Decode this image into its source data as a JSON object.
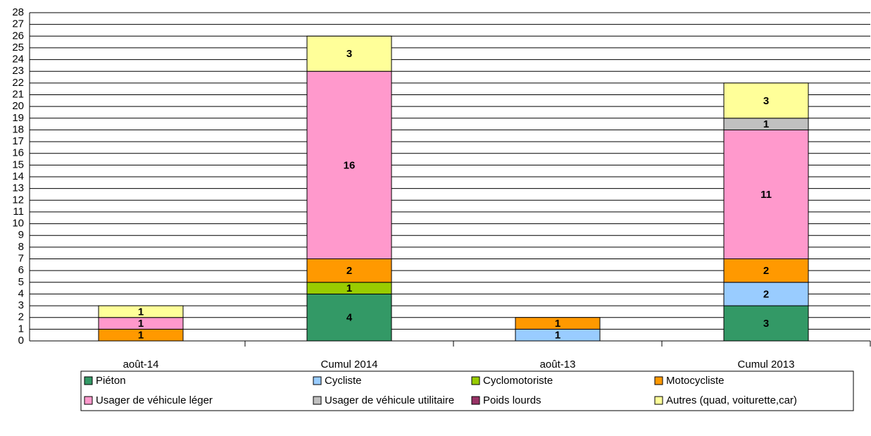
{
  "chart_data": {
    "type": "stacked_bar",
    "categories": [
      "août-14",
      "Cumul 2014",
      "août-13",
      "Cumul 2013"
    ],
    "series": [
      {
        "name": "Piéton",
        "color": "#339966",
        "values": [
          0,
          4,
          0,
          3
        ]
      },
      {
        "name": "Cycliste",
        "color": "#99ccff",
        "values": [
          0,
          0,
          1,
          2
        ]
      },
      {
        "name": "Cyclomotoriste",
        "color": "#99cc00",
        "values": [
          0,
          1,
          0,
          0
        ]
      },
      {
        "name": "Motocycliste",
        "color": "#ff9900",
        "values": [
          1,
          2,
          1,
          2
        ]
      },
      {
        "name": "Usager de véhicule léger",
        "color": "#ff99cc",
        "values": [
          1,
          16,
          0,
          11
        ]
      },
      {
        "name": "Usager de véhicule utilitaire",
        "color": "#c0c0c0",
        "values": [
          0,
          0,
          0,
          1
        ]
      },
      {
        "name": "Poids lourds",
        "color": "#993366",
        "values": [
          0,
          0,
          0,
          0
        ]
      },
      {
        "name": "Autres (quad, voiturette,car)",
        "color": "#ffff99",
        "values": [
          1,
          3,
          0,
          3
        ]
      }
    ],
    "ylim": [
      0,
      28
    ],
    "yticks": [
      0,
      1,
      2,
      3,
      4,
      5,
      6,
      7,
      8,
      9,
      10,
      11,
      12,
      13,
      14,
      15,
      16,
      17,
      18,
      19,
      20,
      21,
      22,
      23,
      24,
      25,
      26,
      27,
      28
    ],
    "grid": true,
    "legend": "bottom"
  }
}
